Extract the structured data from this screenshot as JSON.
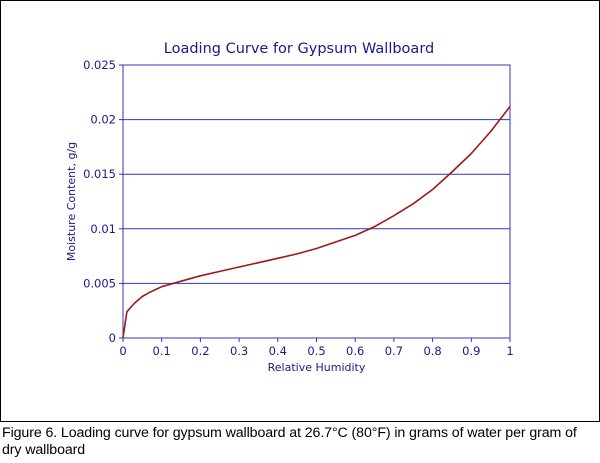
{
  "chart_data": {
    "type": "line",
    "title": "Loading Curve for Gypsum Wallboard",
    "xlabel": "Relative Humidity",
    "ylabel": "Moisture Content, g/g",
    "xlim": [
      0,
      1
    ],
    "ylim": [
      0,
      0.025
    ],
    "xticks": [
      "0",
      "0.1",
      "0.2",
      "0.3",
      "0.4",
      "0.5",
      "0.6",
      "0.7",
      "0.8",
      "0.9",
      "1"
    ],
    "yticks": [
      "0",
      "0.005",
      "0.01",
      "0.015",
      "0.02",
      "0.025"
    ],
    "grid": "horizontal",
    "colors": {
      "text": "#1a1a8a",
      "grid": "#3434b4",
      "series": "#a01818"
    },
    "series": [
      {
        "x": [
          0,
          0.005,
          0.01,
          0.02,
          0.03,
          0.05,
          0.07,
          0.1,
          0.15,
          0.2,
          0.25,
          0.3,
          0.35,
          0.4,
          0.45,
          0.5,
          0.55,
          0.6,
          0.65,
          0.7,
          0.75,
          0.8,
          0.85,
          0.9,
          0.95,
          1.0
        ],
        "y": [
          0,
          0.0012,
          0.0024,
          0.0028,
          0.0032,
          0.0038,
          0.0042,
          0.0047,
          0.0052,
          0.0057,
          0.0061,
          0.0065,
          0.0069,
          0.0073,
          0.0077,
          0.0082,
          0.0088,
          0.0094,
          0.0102,
          0.0112,
          0.0123,
          0.0136,
          0.0152,
          0.0169,
          0.0189,
          0.0212
        ]
      }
    ]
  },
  "caption": "Figure 6.  Loading curve for gypsum wallboard at 26.7°C (80°F) in grams of water per gram of dry wallboard"
}
